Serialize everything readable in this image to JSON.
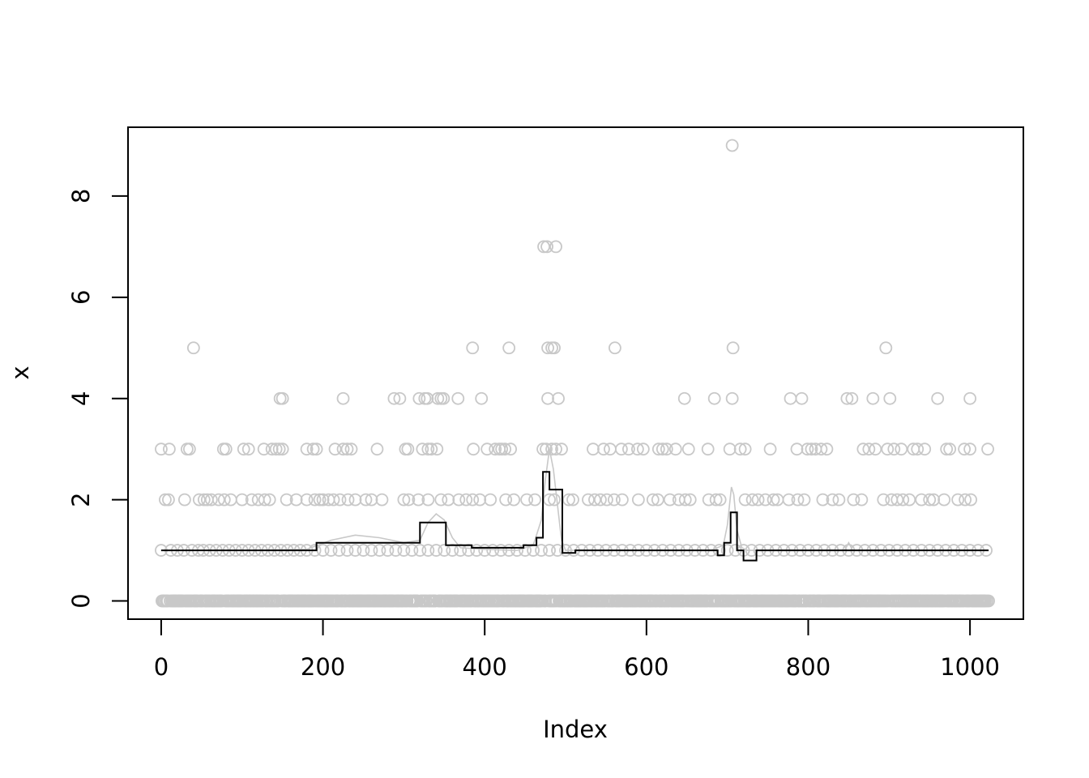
{
  "chart_data": {
    "type": "scatter",
    "xlabel": "Index",
    "ylabel": "x",
    "xlim": [
      -41,
      1066
    ],
    "ylim": [
      -0.36,
      9.36
    ],
    "x_ticks": [
      0,
      200,
      400,
      600,
      800,
      1000
    ],
    "y_ticks": [
      0,
      2,
      4,
      6,
      8
    ],
    "grid": false,
    "n_points": 1024,
    "colors": {
      "points": "#c8c8c8",
      "smooth": "#c8c8c8",
      "step": "#000000",
      "axes": "#000000"
    },
    "points_nonzero": [
      {
        "value": 9,
        "index": [
          706
        ]
      },
      {
        "value": 7,
        "index": [
          473,
          477,
          488
        ]
      },
      {
        "value": 5,
        "index": [
          40,
          385,
          430,
          478,
          483,
          486,
          561,
          707,
          896
        ]
      },
      {
        "value": 4,
        "index": [
          147,
          150,
          225,
          288,
          295,
          319,
          326,
          329,
          342,
          346,
          349,
          367,
          396,
          478,
          491,
          647,
          684,
          706,
          778,
          792,
          848,
          854,
          880,
          901,
          960,
          1000
        ]
      },
      {
        "value": 3,
        "index": [
          0,
          10,
          32,
          35,
          77,
          80,
          102,
          108,
          127,
          137,
          142,
          146,
          150,
          180,
          188,
          192,
          215,
          225,
          230,
          235,
          267,
          302,
          305,
          323,
          330,
          334,
          341,
          386,
          403,
          413,
          418,
          421,
          425,
          432,
          472,
          476,
          483,
          488,
          495,
          534,
          547,
          555,
          569,
          578,
          589,
          596,
          615,
          620,
          625,
          636,
          652,
          676,
          703,
          716,
          722,
          753,
          786,
          799,
          804,
          809,
          816,
          823,
          868,
          875,
          883,
          898,
          906,
          915,
          930,
          935,
          944,
          971,
          975,
          993,
          1000,
          1022
        ]
      },
      {
        "value": 2,
        "index": [
          5,
          9,
          29,
          47,
          53,
          57,
          62,
          71,
          78,
          86,
          100,
          112,
          120,
          128,
          134,
          155,
          167,
          180,
          190,
          196,
          200,
          207,
          213,
          221,
          231,
          240,
          253,
          260,
          273,
          300,
          306,
          318,
          330,
          346,
          355,
          368,
          377,
          385,
          394,
          407,
          426,
          436,
          452,
          462,
          480,
          486,
          504,
          509,
          528,
          536,
          543,
          551,
          560,
          570,
          590,
          608,
          614,
          629,
          640,
          648,
          654,
          677,
          686,
          691,
          722,
          731,
          738,
          747,
          757,
          762,
          776,
          787,
          795,
          818,
          830,
          838,
          856,
          866,
          893,
          903,
          910,
          917,
          925,
          940,
          950,
          955,
          968,
          985,
          994,
          1001
        ]
      },
      {
        "value": 1,
        "index": [
          0,
          12,
          20,
          28,
          38,
          46,
          52,
          60,
          68,
          76,
          84,
          92,
          100,
          108,
          116,
          124,
          132,
          140,
          148,
          156,
          164,
          172,
          180,
          190,
          200,
          210,
          220,
          230,
          240,
          250,
          260,
          270,
          280,
          290,
          300,
          310,
          320,
          330,
          340,
          350,
          360,
          370,
          380,
          390,
          400,
          410,
          420,
          430,
          440,
          450,
          460,
          470,
          480,
          490,
          500,
          510,
          520,
          530,
          540,
          550,
          560,
          570,
          580,
          590,
          600,
          610,
          620,
          630,
          640,
          650,
          660,
          670,
          680,
          690,
          700,
          710,
          720,
          730,
          740,
          750,
          760,
          770,
          780,
          790,
          800,
          810,
          820,
          830,
          840,
          850,
          860,
          870,
          880,
          890,
          900,
          910,
          920,
          930,
          940,
          950,
          960,
          970,
          980,
          990,
          1000,
          1010,
          1020
        ]
      }
    ],
    "step_fit": [
      {
        "x0": 0,
        "x1": 192,
        "y": 1.0
      },
      {
        "x0": 192,
        "x1": 320,
        "y": 1.15
      },
      {
        "x0": 320,
        "x1": 352,
        "y": 1.55
      },
      {
        "x0": 352,
        "x1": 384,
        "y": 1.1
      },
      {
        "x0": 384,
        "x1": 448,
        "y": 1.05
      },
      {
        "x0": 448,
        "x1": 464,
        "y": 1.1
      },
      {
        "x0": 464,
        "x1": 472,
        "y": 1.25
      },
      {
        "x0": 472,
        "x1": 480,
        "y": 2.55
      },
      {
        "x0": 480,
        "x1": 496,
        "y": 2.2
      },
      {
        "x0": 496,
        "x1": 512,
        "y": 0.95
      },
      {
        "x0": 512,
        "x1": 688,
        "y": 1.0
      },
      {
        "x0": 688,
        "x1": 696,
        "y": 0.9
      },
      {
        "x0": 696,
        "x1": 704,
        "y": 1.15
      },
      {
        "x0": 704,
        "x1": 712,
        "y": 1.75
      },
      {
        "x0": 712,
        "x1": 720,
        "y": 1.0
      },
      {
        "x0": 720,
        "x1": 736,
        "y": 0.8
      },
      {
        "x0": 736,
        "x1": 1023,
        "y": 1.0
      }
    ],
    "smooth_fit": {
      "x": [
        0,
        100,
        180,
        210,
        240,
        270,
        300,
        320,
        330,
        340,
        350,
        360,
        370,
        400,
        440,
        460,
        470,
        475,
        480,
        485,
        490,
        495,
        500,
        520,
        600,
        680,
        695,
        700,
        705,
        708,
        712,
        718,
        725,
        740,
        800,
        845,
        850,
        855,
        900,
        1023
      ],
      "y": [
        1.0,
        1.0,
        1.02,
        1.2,
        1.3,
        1.25,
        1.15,
        1.2,
        1.55,
        1.72,
        1.6,
        1.25,
        1.05,
        1.02,
        1.0,
        1.1,
        1.6,
        2.4,
        3.0,
        2.6,
        1.9,
        1.2,
        1.0,
        1.0,
        1.0,
        1.0,
        1.1,
        1.5,
        2.25,
        2.1,
        1.4,
        1.05,
        1.0,
        1.0,
        1.0,
        1.0,
        1.15,
        1.0,
        1.0,
        1.0
      ]
    }
  }
}
